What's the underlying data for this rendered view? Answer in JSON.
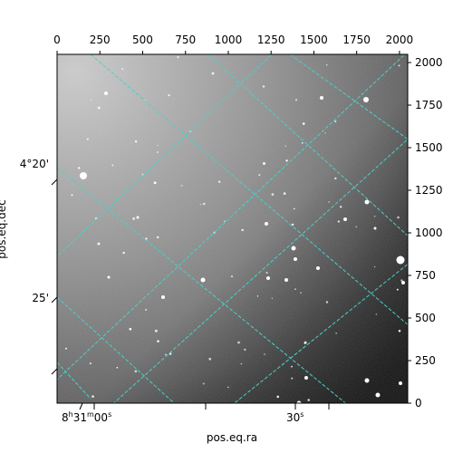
{
  "chart_data": {
    "type": "image",
    "title": "",
    "xlabel": "pos.eq.ra",
    "ylabel": "pos.eq.dec",
    "xlim": [
      0,
      2048
    ],
    "ylim": [
      0,
      2048
    ],
    "pixel_x_ticks": [
      0,
      250,
      500,
      750,
      1000,
      1250,
      1500,
      1750,
      2000
    ],
    "pixel_y_ticks": [
      0,
      250,
      500,
      750,
      1000,
      1250,
      1500,
      1750,
      2000
    ],
    "ra_tick_labels": [
      {
        "label": "8h31m00s",
        "parts": [
          "8",
          "h",
          "31",
          "m",
          "00",
          "s"
        ]
      },
      {
        "label": "30s",
        "parts": [
          "30",
          "s"
        ]
      }
    ],
    "dec_tick_labels": [
      "4°20'",
      "25'"
    ],
    "grid": true,
    "grid_color": "#48d1cc",
    "colormap": "gray"
  }
}
